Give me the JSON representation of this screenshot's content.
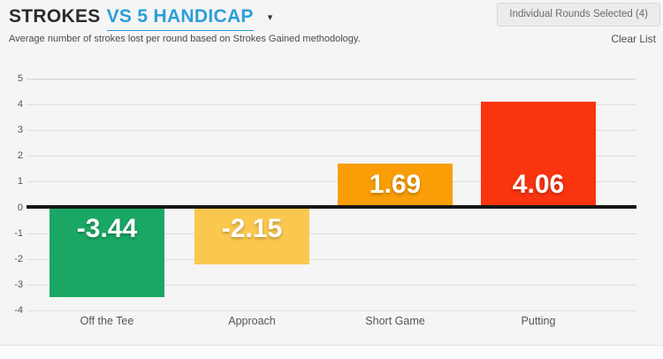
{
  "header": {
    "title_main": "STROKES",
    "title_accent": "VS 5 HANDICAP",
    "caret": "▾",
    "subtitle": "Average number of strokes lost per round based on Strokes Gained methodology.",
    "rounds_button_label": "Individual Rounds Selected (4)",
    "clear_link_label": "Clear List"
  },
  "chart_data": {
    "type": "bar",
    "categories": [
      "Off the Tee",
      "Approach",
      "Short Game",
      "Putting"
    ],
    "values": [
      -3.44,
      -2.15,
      1.69,
      4.06
    ],
    "value_labels": [
      "-3.44",
      "-2.15",
      "1.69",
      "4.06"
    ],
    "bar_colors": [
      "#1aa765",
      "#fbc84f",
      "#f99e06",
      "#fa340e"
    ],
    "ylim": [
      -4,
      5
    ],
    "ytick_step": 1,
    "grid": true,
    "zero_line": true,
    "title": "STROKES VS 5 HANDICAP",
    "xlabel": "",
    "ylabel": ""
  },
  "colors": {
    "accent_blue": "#2d9ed9",
    "page_bg": "#f5f5f5",
    "gridline": "#dedede",
    "zero_line": "#161616",
    "bar_value_text": "#ffffff"
  }
}
